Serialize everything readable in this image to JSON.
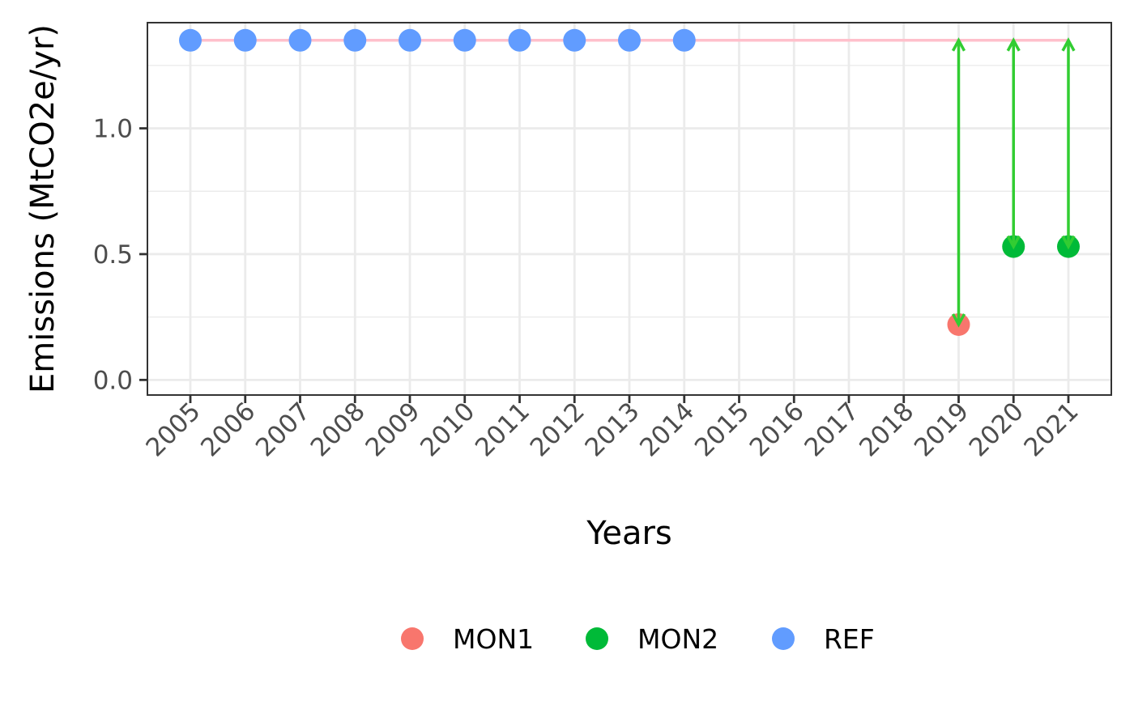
{
  "chart_data": {
    "type": "scatter",
    "xlabel": "Years",
    "ylabel": "Emissions (MtCO2e/yr)",
    "x_categories": [
      "2005",
      "2006",
      "2007",
      "2008",
      "2009",
      "2010",
      "2011",
      "2012",
      "2013",
      "2014",
      "2015",
      "2016",
      "2017",
      "2018",
      "2019",
      "2020",
      "2021"
    ],
    "y_ticks": [
      0.0,
      0.5,
      1.0
    ],
    "y_tick_labels": [
      "0.0",
      "0.5",
      "1.0"
    ],
    "ylim": [
      -0.06,
      1.42
    ],
    "grid": true,
    "legend_position": "bottom",
    "reference_level": {
      "value": 1.35,
      "color": "#ffc0cb"
    },
    "series": [
      {
        "name": "MON1",
        "color": "#f8766d",
        "points": [
          {
            "x": "2019",
            "y": 0.22
          }
        ]
      },
      {
        "name": "MON2",
        "color": "#00ba38",
        "points": [
          {
            "x": "2020",
            "y": 0.53
          },
          {
            "x": "2021",
            "y": 0.53
          }
        ]
      },
      {
        "name": "REF",
        "color": "#619cff",
        "points": [
          {
            "x": "2005",
            "y": 1.35
          },
          {
            "x": "2006",
            "y": 1.35
          },
          {
            "x": "2007",
            "y": 1.35
          },
          {
            "x": "2008",
            "y": 1.35
          },
          {
            "x": "2009",
            "y": 1.35
          },
          {
            "x": "2010",
            "y": 1.35
          },
          {
            "x": "2011",
            "y": 1.35
          },
          {
            "x": "2012",
            "y": 1.35
          },
          {
            "x": "2013",
            "y": 1.35
          },
          {
            "x": "2014",
            "y": 1.35
          }
        ]
      }
    ],
    "reduction_arrows": {
      "color": "#32cd32",
      "items": [
        {
          "x": "2019",
          "from": 1.35,
          "to": 0.22
        },
        {
          "x": "2020",
          "from": 1.35,
          "to": 0.53
        },
        {
          "x": "2021",
          "from": 1.35,
          "to": 0.53
        }
      ]
    }
  }
}
